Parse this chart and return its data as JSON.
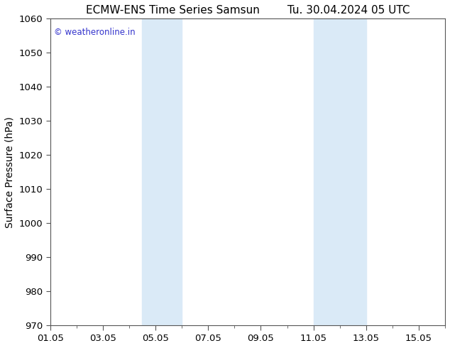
{
  "title_left": "ECMW-ENS Time Series Samsun",
  "title_right": "Tu. 30.04.2024 05 UTC",
  "ylabel": "Surface Pressure (hPa)",
  "ylim": [
    970,
    1060
  ],
  "yticks": [
    970,
    980,
    990,
    1000,
    1010,
    1020,
    1030,
    1040,
    1050,
    1060
  ],
  "x_min": 0,
  "x_max": 15,
  "xtick_labels": [
    "01.05",
    "03.05",
    "05.05",
    "07.05",
    "09.05",
    "11.05",
    "13.05",
    "15.05"
  ],
  "xtick_positions": [
    0,
    2,
    4,
    6,
    8,
    10,
    12,
    14
  ],
  "shaded_bands": [
    {
      "x_start": 3.5,
      "x_end": 5.0
    },
    {
      "x_start": 10.0,
      "x_end": 12.0
    }
  ],
  "shaded_color": "#daeaf7",
  "background_color": "#ffffff",
  "plot_bg_color": "#ffffff",
  "watermark_text": "© weatheronline.in",
  "watermark_color": "#3333cc",
  "title_fontsize": 11,
  "axis_label_fontsize": 10,
  "tick_fontsize": 9.5,
  "spine_color": "#555555"
}
